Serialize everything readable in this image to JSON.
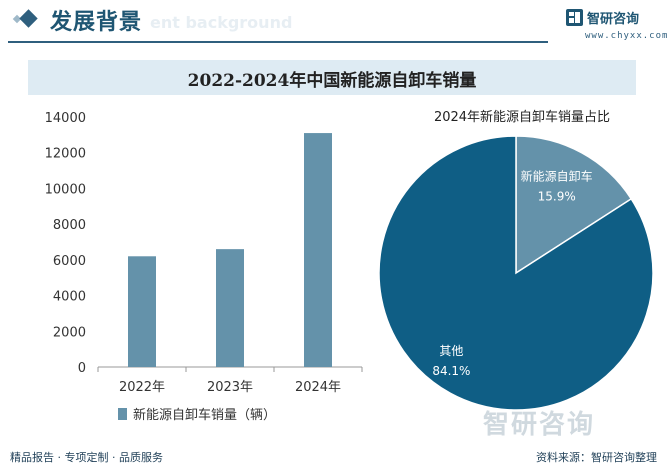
{
  "header": {
    "title": "发展背景",
    "ghost_text": "ent background",
    "logo_text": "智研咨询",
    "logo_url": "www.chyxx.com"
  },
  "chart_data": [
    {
      "type": "bar",
      "title": "2022-2024年中国新能源自卸车销量",
      "categories": [
        "2022年",
        "2023年",
        "2024年"
      ],
      "series": [
        {
          "name": "新能源自卸车销量（辆）",
          "values": [
            6200,
            6600,
            13100
          ],
          "color": "#6492aa"
        }
      ],
      "ylim": [
        0,
        14000
      ],
      "yticks": [
        0,
        2000,
        4000,
        6000,
        8000,
        10000,
        12000,
        14000
      ],
      "legend": "bottom"
    },
    {
      "type": "pie",
      "title": "2024年新能源自卸车销量占比",
      "slices": [
        {
          "name": "新能源自卸车",
          "value": 15.9,
          "label": "15.9%",
          "color": "#6492aa"
        },
        {
          "name": "其他",
          "value": 84.1,
          "label": "84.1%",
          "color": "#0f5e85"
        }
      ]
    }
  ],
  "watermark": "智研咨询",
  "footer": {
    "left": "精品报告 · 专项定制 · 品质服务",
    "right": "资料来源：智研咨询整理"
  }
}
